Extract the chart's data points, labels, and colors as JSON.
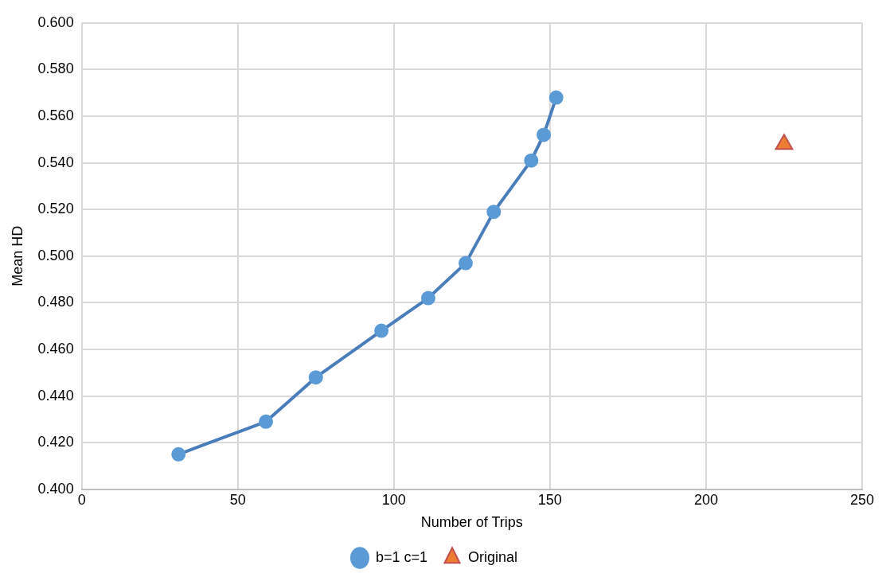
{
  "chart_data": {
    "type": "line",
    "xlabel": "Number of Trips",
    "ylabel": "Mean HD",
    "xlim": [
      0,
      250
    ],
    "xticks": [
      0,
      50,
      100,
      150,
      200,
      250
    ],
    "ylim": [
      0.4,
      0.6
    ],
    "yticks": [
      {
        "value": 0.4,
        "label": "0.400"
      },
      {
        "value": 0.42,
        "label": "0.420"
      },
      {
        "value": 0.44,
        "label": "0.440"
      },
      {
        "value": 0.46,
        "label": "0.460"
      },
      {
        "value": 0.48,
        "label": "0.480"
      },
      {
        "value": 0.5,
        "label": "0.500"
      },
      {
        "value": 0.52,
        "label": "0.520"
      },
      {
        "value": 0.54,
        "label": "0.540"
      },
      {
        "value": 0.56,
        "label": "0.560"
      },
      {
        "value": 0.58,
        "label": "0.580"
      },
      {
        "value": 0.6,
        "label": "0.600"
      }
    ],
    "grid": true,
    "legend": "bottom",
    "series": [
      {
        "name": "b=1 c=1",
        "type": "line",
        "marker": "circle",
        "color": "#5b9bd5",
        "x": [
          31,
          59,
          75,
          96,
          111,
          123,
          132,
          144,
          148,
          152
        ],
        "values": [
          0.415,
          0.429,
          0.448,
          0.468,
          0.482,
          0.497,
          0.519,
          0.541,
          0.552,
          0.568
        ]
      },
      {
        "name": "Original",
        "type": "scatter",
        "marker": "triangle",
        "color": "#ed7d31",
        "x": [
          225
        ],
        "values": [
          0.548
        ]
      }
    ]
  }
}
